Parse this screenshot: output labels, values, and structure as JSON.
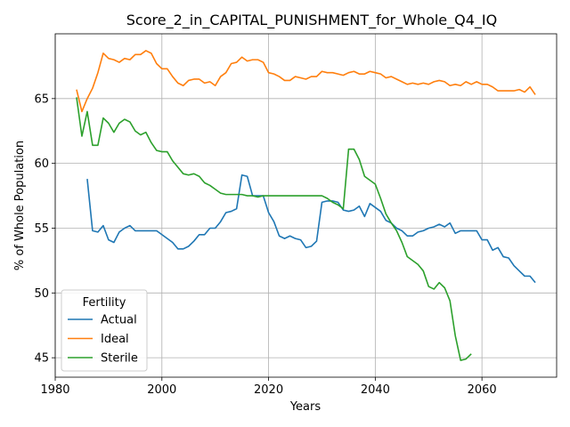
{
  "chart_data": {
    "type": "line",
    "title": "Score_2_in_CAPITAL_PUNISHMENT_for_Whole_Q4_IQ",
    "xlabel": "Years",
    "ylabel": "% of Whole Population",
    "xlim": [
      1980,
      2074
    ],
    "ylim": [
      43.5,
      70.0
    ],
    "xticks": [
      1980,
      2000,
      2020,
      2040,
      2060
    ],
    "yticks": [
      45,
      50,
      55,
      60,
      65
    ],
    "grid": true,
    "legend": {
      "title": "Fertility",
      "placement": "lower-left"
    },
    "series": [
      {
        "name": "Actual",
        "color": "#1f77b4",
        "x": [
          1986,
          1987,
          1988,
          1989,
          1990,
          1991,
          1992,
          1993,
          1994,
          1995,
          1996,
          1997,
          1998,
          1999,
          2000,
          2001,
          2002,
          2003,
          2004,
          2005,
          2006,
          2007,
          2008,
          2009,
          2010,
          2011,
          2012,
          2013,
          2014,
          2015,
          2016,
          2017,
          2018,
          2019,
          2020,
          2021,
          2022,
          2023,
          2024,
          2025,
          2026,
          2027,
          2028,
          2029,
          2030,
          2031,
          2032,
          2033,
          2034,
          2035,
          2036,
          2037,
          2038,
          2039,
          2040,
          2041,
          2042,
          2043,
          2044,
          2045,
          2046,
          2047,
          2048,
          2049,
          2050,
          2051,
          2052,
          2053,
          2054,
          2055,
          2056,
          2057,
          2058,
          2059,
          2060,
          2061,
          2062,
          2063,
          2064,
          2065,
          2066,
          2067,
          2068,
          2069,
          2070
        ],
        "y": [
          58.8,
          54.8,
          54.7,
          55.2,
          54.1,
          53.9,
          54.7,
          55.0,
          55.2,
          54.8,
          54.8,
          54.8,
          54.8,
          54.8,
          54.5,
          54.2,
          53.9,
          53.4,
          53.4,
          53.6,
          54.0,
          54.5,
          54.5,
          55.0,
          55.0,
          55.5,
          56.2,
          56.3,
          56.5,
          59.1,
          59.0,
          57.5,
          57.5,
          57.5,
          56.2,
          55.5,
          54.4,
          54.2,
          54.4,
          54.2,
          54.1,
          53.5,
          53.6,
          54.0,
          57.0,
          57.1,
          57.1,
          57.0,
          56.4,
          56.3,
          56.4,
          56.7,
          55.9,
          56.9,
          56.6,
          56.3,
          55.6,
          55.4,
          55.0,
          54.8,
          54.4,
          54.4,
          54.7,
          54.8,
          55.0,
          55.1,
          55.3,
          55.1,
          55.4,
          54.6,
          54.8,
          54.8,
          54.8,
          54.8,
          54.1,
          54.1,
          53.3,
          53.5,
          52.8,
          52.7,
          52.1,
          51.7,
          51.3,
          51.3,
          50.8
        ]
      },
      {
        "name": "Ideal",
        "color": "#ff7f0e",
        "x": [
          1984,
          1985,
          1986,
          1987,
          1988,
          1989,
          1990,
          1991,
          1992,
          1993,
          1994,
          1995,
          1996,
          1997,
          1998,
          1999,
          2000,
          2001,
          2002,
          2003,
          2004,
          2005,
          2006,
          2007,
          2008,
          2009,
          2010,
          2011,
          2012,
          2013,
          2014,
          2015,
          2016,
          2017,
          2018,
          2019,
          2020,
          2021,
          2022,
          2023,
          2024,
          2025,
          2026,
          2027,
          2028,
          2029,
          2030,
          2031,
          2032,
          2033,
          2034,
          2035,
          2036,
          2037,
          2038,
          2039,
          2040,
          2041,
          2042,
          2043,
          2044,
          2045,
          2046,
          2047,
          2048,
          2049,
          2050,
          2051,
          2052,
          2053,
          2054,
          2055,
          2056,
          2057,
          2058,
          2059,
          2060,
          2061,
          2062,
          2063,
          2064,
          2065,
          2066,
          2067,
          2068,
          2069,
          2070
        ],
        "y": [
          65.7,
          64.0,
          65.0,
          65.8,
          67.0,
          68.5,
          68.1,
          68.0,
          67.8,
          68.1,
          68.0,
          68.4,
          68.4,
          68.7,
          68.5,
          67.7,
          67.3,
          67.3,
          66.7,
          66.2,
          66.0,
          66.4,
          66.5,
          66.5,
          66.2,
          66.3,
          66.0,
          66.7,
          67.0,
          67.7,
          67.8,
          68.2,
          67.9,
          68.0,
          68.0,
          67.8,
          67.0,
          66.9,
          66.7,
          66.4,
          66.4,
          66.7,
          66.6,
          66.5,
          66.7,
          66.7,
          67.1,
          67.0,
          67.0,
          66.9,
          66.8,
          67.0,
          67.1,
          66.9,
          66.9,
          67.1,
          67.0,
          66.9,
          66.6,
          66.7,
          66.5,
          66.3,
          66.1,
          66.2,
          66.1,
          66.2,
          66.1,
          66.3,
          66.4,
          66.3,
          66.0,
          66.1,
          66.0,
          66.3,
          66.1,
          66.3,
          66.1,
          66.1,
          65.9,
          65.6,
          65.6,
          65.6,
          65.6,
          65.7,
          65.5,
          65.9,
          65.3
        ]
      },
      {
        "name": "Sterile",
        "color": "#2ca02c",
        "x": [
          1984,
          1985,
          1986,
          1987,
          1988,
          1989,
          1990,
          1991,
          1992,
          1993,
          1994,
          1995,
          1996,
          1997,
          1998,
          1999,
          2000,
          2001,
          2002,
          2003,
          2004,
          2005,
          2006,
          2007,
          2008,
          2009,
          2010,
          2011,
          2012,
          2013,
          2014,
          2015,
          2016,
          2017,
          2018,
          2019,
          2020,
          2021,
          2022,
          2023,
          2024,
          2025,
          2026,
          2027,
          2028,
          2029,
          2030,
          2031,
          2032,
          2033,
          2034,
          2035,
          2036,
          2037,
          2038,
          2039,
          2040,
          2041,
          2042,
          2043,
          2044,
          2045,
          2046,
          2047,
          2048,
          2049,
          2050,
          2051,
          2052,
          2053,
          2054,
          2055,
          2056,
          2057,
          2058
        ],
        "y": [
          65.1,
          62.1,
          64.0,
          61.4,
          61.4,
          63.5,
          63.1,
          62.4,
          63.1,
          63.4,
          63.2,
          62.5,
          62.2,
          62.4,
          61.6,
          61.0,
          60.9,
          60.9,
          60.2,
          59.7,
          59.2,
          59.1,
          59.2,
          59.0,
          58.5,
          58.3,
          58.0,
          57.7,
          57.6,
          57.6,
          57.6,
          57.6,
          57.5,
          57.5,
          57.4,
          57.5,
          57.5,
          57.5,
          57.5,
          57.5,
          57.5,
          57.5,
          57.5,
          57.5,
          57.5,
          57.5,
          57.5,
          57.3,
          57.0,
          56.8,
          56.5,
          61.1,
          61.1,
          60.3,
          59.0,
          58.7,
          58.4,
          57.3,
          56.1,
          55.4,
          54.8,
          53.9,
          52.8,
          52.5,
          52.2,
          51.7,
          50.5,
          50.3,
          50.8,
          50.4,
          49.4,
          46.7,
          44.8,
          44.9,
          45.3
        ]
      }
    ]
  }
}
